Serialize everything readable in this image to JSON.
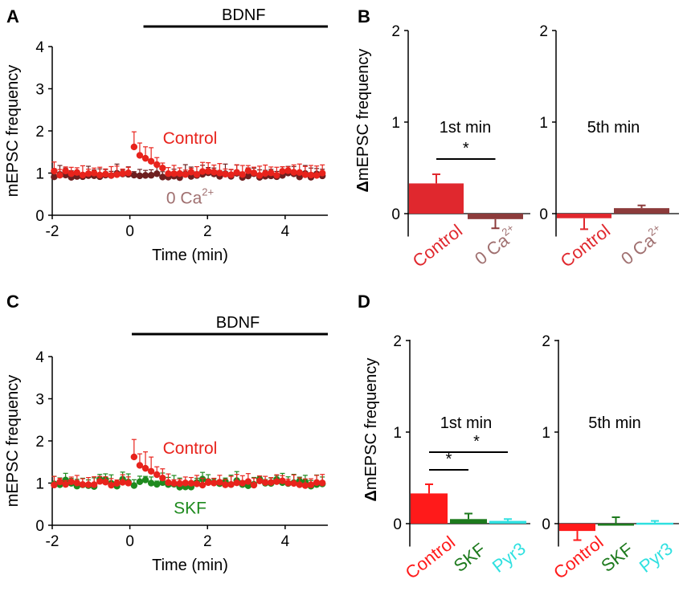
{
  "chart_data": [
    {
      "panel": "A",
      "type": "scatter",
      "xlabel": "Time (min)",
      "ylabel": "mEPSC frequency",
      "xlim": [
        -2,
        5.1
      ],
      "ylim": [
        0,
        4
      ],
      "xticks": [
        "-2",
        "0",
        "2",
        "4"
      ],
      "yticks": [
        "0",
        "1",
        "2",
        "3",
        "4"
      ],
      "bar_label": "BDNF",
      "bar_range": [
        0.35,
        5.1
      ],
      "series": [
        {
          "name": "Control",
          "color": "#e8231c",
          "baseline": 1.0,
          "spike": [
            [
              0.15,
              1.62
            ],
            [
              0.3,
              1.42
            ],
            [
              0.45,
              1.35
            ],
            [
              0.6,
              1.28
            ],
            [
              0.75,
              1.2
            ],
            [
              0.9,
              1.12
            ]
          ],
          "jitter": 0.06
        },
        {
          "name": "0 Ca2+",
          "color": "#6e1f1f",
          "baseline": 0.95,
          "spike": [],
          "jitter": 0.06
        }
      ],
      "labels": {
        "control": "Control",
        "other_main": "0 Ca",
        "other_sup": "2+"
      }
    },
    {
      "panel": "B",
      "type": "bar",
      "ylabel_sym": "Δ",
      "ylabel": "mEPSC frequency",
      "ylim": [
        -0.25,
        2
      ],
      "yticks": [
        "0",
        "1",
        "2"
      ],
      "subplots": [
        {
          "title": "1st min",
          "categories": [
            "Control",
            "0 Ca"
          ],
          "cat_sups": [
            "",
            "2+"
          ],
          "values": [
            0.33,
            -0.06
          ],
          "errors": [
            0.1,
            0.1
          ],
          "colors": [
            "#e0282e",
            "#8c3b3b"
          ],
          "sig": "*"
        },
        {
          "title": "5th min",
          "categories": [
            "Control",
            "0 Ca"
          ],
          "cat_sups": [
            "",
            "2+"
          ],
          "values": [
            -0.05,
            0.06
          ],
          "errors": [
            0.12,
            0.03
          ],
          "colors": [
            "#e0282e",
            "#8c3b3b"
          ],
          "sig": ""
        }
      ],
      "label_colors": [
        "#e0282e",
        "#a07070"
      ]
    },
    {
      "panel": "C",
      "type": "scatter",
      "xlabel": "Time (min)",
      "ylabel": "mEPSC frequency",
      "xlim": [
        -2,
        5.1
      ],
      "ylim": [
        0,
        4
      ],
      "xticks": [
        "-2",
        "0",
        "2",
        "4"
      ],
      "yticks": [
        "0",
        "1",
        "2",
        "3",
        "4"
      ],
      "bar_label": "BDNF",
      "bar_range": [
        0.05,
        5.1
      ],
      "series": [
        {
          "name": "Control",
          "color": "#e8231c",
          "baseline": 1.0,
          "spike": [
            [
              0.15,
              1.62
            ],
            [
              0.3,
              1.42
            ],
            [
              0.45,
              1.35
            ],
            [
              0.6,
              1.28
            ],
            [
              0.75,
              1.2
            ],
            [
              0.9,
              1.12
            ]
          ],
          "jitter": 0.06
        },
        {
          "name": "SKF",
          "color": "#1e8a1e",
          "baseline": 1.0,
          "spike": [],
          "jitter": 0.1
        }
      ],
      "labels": {
        "control": "Control",
        "other_main": "SKF",
        "other_sup": ""
      }
    },
    {
      "panel": "D",
      "type": "bar",
      "ylabel_sym": "Δ",
      "ylabel": "mEPSC frequency",
      "ylim": [
        -0.25,
        2
      ],
      "yticks": [
        "0",
        "1",
        "2"
      ],
      "subplots": [
        {
          "title": "1st min",
          "categories": [
            "Control",
            "SKF",
            "Pyr3"
          ],
          "cat_sups": [
            "",
            "",
            ""
          ],
          "values": [
            0.33,
            0.05,
            0.03
          ],
          "errors": [
            0.1,
            0.06,
            0.02
          ],
          "colors": [
            "#ff1a1a",
            "#1d7a1d",
            "#2fe0e0"
          ],
          "sig": "*"
        },
        {
          "title": "5th min",
          "categories": [
            "Control",
            "SKF",
            "Pyr3"
          ],
          "cat_sups": [
            "",
            "",
            ""
          ],
          "values": [
            -0.08,
            0.0,
            0.01
          ],
          "errors": [
            0.1,
            0.07,
            0.02
          ],
          "colors": [
            "#ff1a1a",
            "#1d7a1d",
            "#2fe0e0"
          ],
          "sig": ""
        }
      ],
      "label_colors": [
        "#ff1a1a",
        "#1d7a1d",
        "#2fe0e0"
      ]
    }
  ]
}
